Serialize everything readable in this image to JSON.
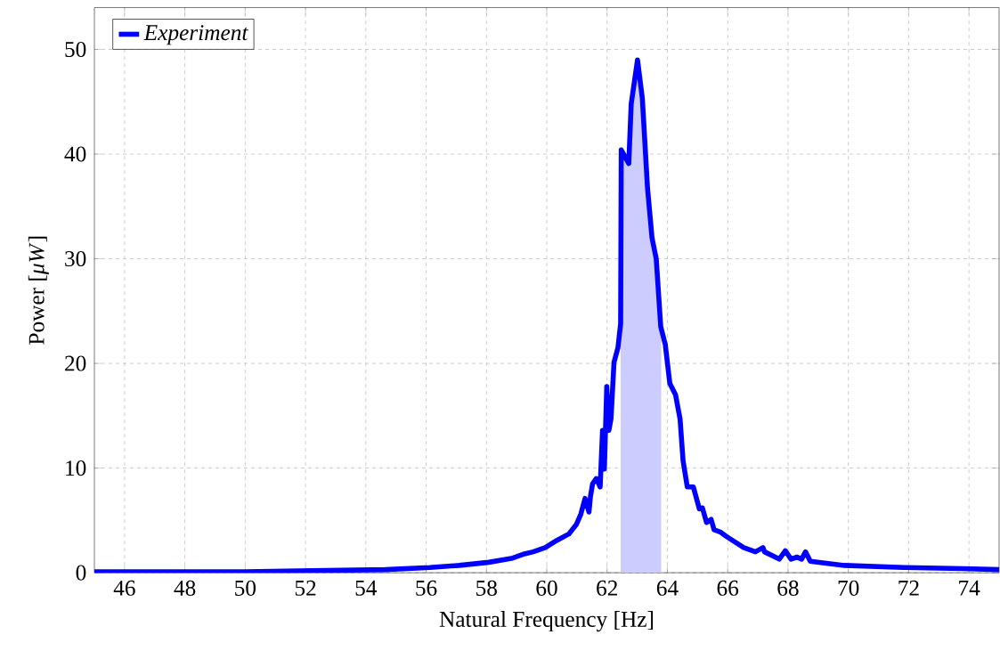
{
  "chart_data": {
    "type": "line",
    "xlabel": "Natural Frequency [Hz]",
    "ylabel": "Power [*μW*]",
    "xlim": [
      45,
      75
    ],
    "ylim": [
      0,
      54
    ],
    "xticks": [
      46,
      48,
      50,
      52,
      54,
      56,
      58,
      60,
      62,
      64,
      66,
      68,
      70,
      72,
      74
    ],
    "yticks": [
      0,
      10,
      20,
      30,
      40,
      50
    ],
    "grid": true,
    "legend": "top left",
    "marker": "none",
    "line_style": "solid",
    "series": [
      {
        "type": "area",
        "color": "#ccccff",
        "x": [
          62.45,
          62.47,
          62.72,
          62.8,
          63.01,
          63.17,
          63.34,
          63.49,
          63.63,
          63.8
        ],
        "values": [
          23.8,
          40.4,
          39.1,
          44.8,
          49.0,
          45.3,
          36.8,
          32.0,
          30.0,
          23.3
        ]
      },
      {
        "name": "Experiment",
        "color": "#0000ff",
        "x": [
          45,
          48,
          50,
          52.2,
          54.65,
          56.12,
          57.1,
          58.08,
          58.87,
          59.26,
          59.55,
          59.95,
          60.34,
          60.73,
          60.98,
          61.13,
          61.27,
          61.4,
          61.45,
          61.52,
          61.64,
          61.77,
          61.85,
          61.91,
          61.99,
          62.06,
          62.13,
          62.23,
          62.36,
          62.45,
          62.47,
          62.72,
          62.8,
          63.01,
          63.17,
          63.34,
          63.49,
          63.63,
          63.78,
          63.93,
          64.08,
          64.27,
          64.42,
          64.52,
          64.66,
          64.86,
          65.06,
          65.16,
          65.3,
          65.45,
          65.55,
          65.75,
          65.94,
          66.53,
          66.92,
          67.17,
          67.22,
          67.71,
          67.91,
          68.1,
          68.3,
          68.45,
          68.58,
          68.74,
          69.87,
          71.84,
          73.8,
          75
        ],
        "values": [
          0.1,
          0.1,
          0.1,
          0.2,
          0.3,
          0.5,
          0.7,
          1.0,
          1.4,
          1.8,
          2.0,
          2.4,
          3.1,
          3.7,
          4.6,
          5.6,
          7.1,
          5.8,
          7.3,
          8.5,
          9.0,
          8.2,
          13.6,
          9.9,
          17.8,
          13.6,
          14.7,
          20.1,
          21.5,
          23.8,
          40.4,
          39.1,
          44.8,
          49.0,
          45.3,
          36.8,
          32.0,
          30.0,
          23.5,
          21.8,
          18.1,
          17.0,
          14.7,
          10.7,
          8.2,
          8.2,
          6.1,
          6.2,
          4.8,
          5.1,
          4.1,
          3.9,
          3.5,
          2.4,
          2.0,
          2.4,
          2.0,
          1.3,
          2.1,
          1.3,
          1.5,
          1.3,
          2.0,
          1.1,
          0.7,
          0.5,
          0.4,
          0.3
        ]
      }
    ]
  }
}
